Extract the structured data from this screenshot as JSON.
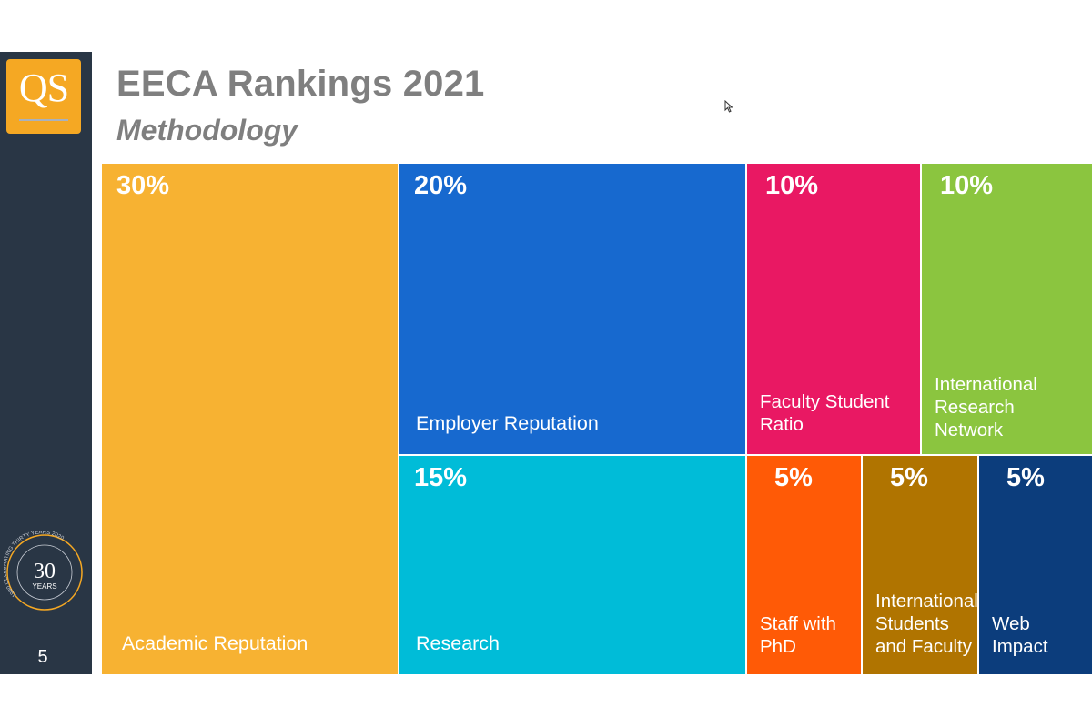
{
  "slide": {
    "title": "EECA Rankings 2021",
    "subtitle": "Methodology",
    "page_number": "5"
  },
  "logo": {
    "text": "QS"
  },
  "seal": {
    "big_number": "30",
    "word": "YEARS",
    "ring_text": "1990 CELEBRATING THIRTY YEARS 2020"
  },
  "colors": {
    "sidebar": "#293645",
    "logo": "#f5a823",
    "title": "#7f7f7f"
  },
  "chart_data": {
    "type": "treemap",
    "title": "EECA Rankings 2021",
    "subtitle": "Methodology",
    "unit": "%",
    "items": [
      {
        "label": "Academic Reputation",
        "pct_label": "30%",
        "value": 30,
        "color": "#f7b232"
      },
      {
        "label": "Employer Reputation",
        "pct_label": "20%",
        "value": 20,
        "color": "#1769cf"
      },
      {
        "label": "Faculty Student\nRatio",
        "pct_label": "10%",
        "value": 10,
        "color": "#e91863"
      },
      {
        "label": "International\nResearch\nNetwork",
        "pct_label": "10%",
        "value": 10,
        "color": "#8bc53f"
      },
      {
        "label": "Research",
        "pct_label": "15%",
        "value": 15,
        "color": "#00bcd8"
      },
      {
        "label": "Staff with\nPhD",
        "pct_label": "5%",
        "value": 5,
        "color": "#ff5a06"
      },
      {
        "label": "International\nStudents\nand Faculty",
        "pct_label": "5%",
        "value": 5,
        "color": "#b07400"
      },
      {
        "label": "Web\nImpact",
        "pct_label": "5%",
        "value": 5,
        "color": "#0c3d7c"
      }
    ]
  }
}
